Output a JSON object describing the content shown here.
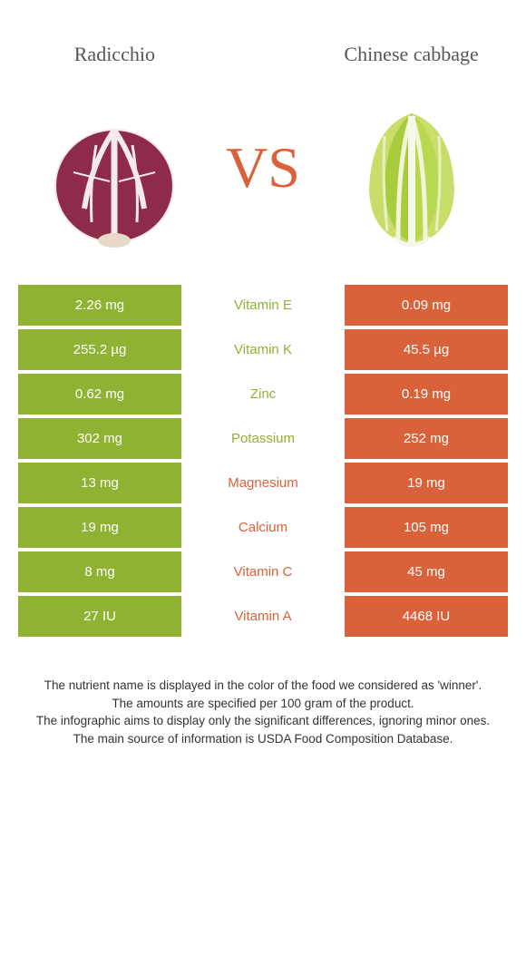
{
  "title_left": "Radicchio",
  "title_right": "Chinese cabbage",
  "vs_label": "VS",
  "colors": {
    "left_bg": "#8fb233",
    "right_bg": "#d9623b",
    "left_text": "#8fb233",
    "right_text": "#d9623b",
    "vs": "#d9623b"
  },
  "rows": [
    {
      "left": "2.26 mg",
      "name": "Vitamin E",
      "right": "0.09 mg",
      "winner": "left"
    },
    {
      "left": "255.2 µg",
      "name": "Vitamin K",
      "right": "45.5 µg",
      "winner": "left"
    },
    {
      "left": "0.62 mg",
      "name": "Zinc",
      "right": "0.19 mg",
      "winner": "left"
    },
    {
      "left": "302 mg",
      "name": "Potassium",
      "right": "252 mg",
      "winner": "left"
    },
    {
      "left": "13 mg",
      "name": "Magnesium",
      "right": "19 mg",
      "winner": "right"
    },
    {
      "left": "19 mg",
      "name": "Calcium",
      "right": "105 mg",
      "winner": "right"
    },
    {
      "left": "8 mg",
      "name": "Vitamin C",
      "right": "45 mg",
      "winner": "right"
    },
    {
      "left": "27 IU",
      "name": "Vitamin A",
      "right": "4468 IU",
      "winner": "right"
    }
  ],
  "footer_lines": [
    "The nutrient name is displayed in the color of the food we considered as 'winner'.",
    "The amounts are specified per 100 gram of the product.",
    "The infographic aims to display only the significant differences, ignoring minor ones.",
    "The main source of information is USDA Food Composition Database."
  ]
}
